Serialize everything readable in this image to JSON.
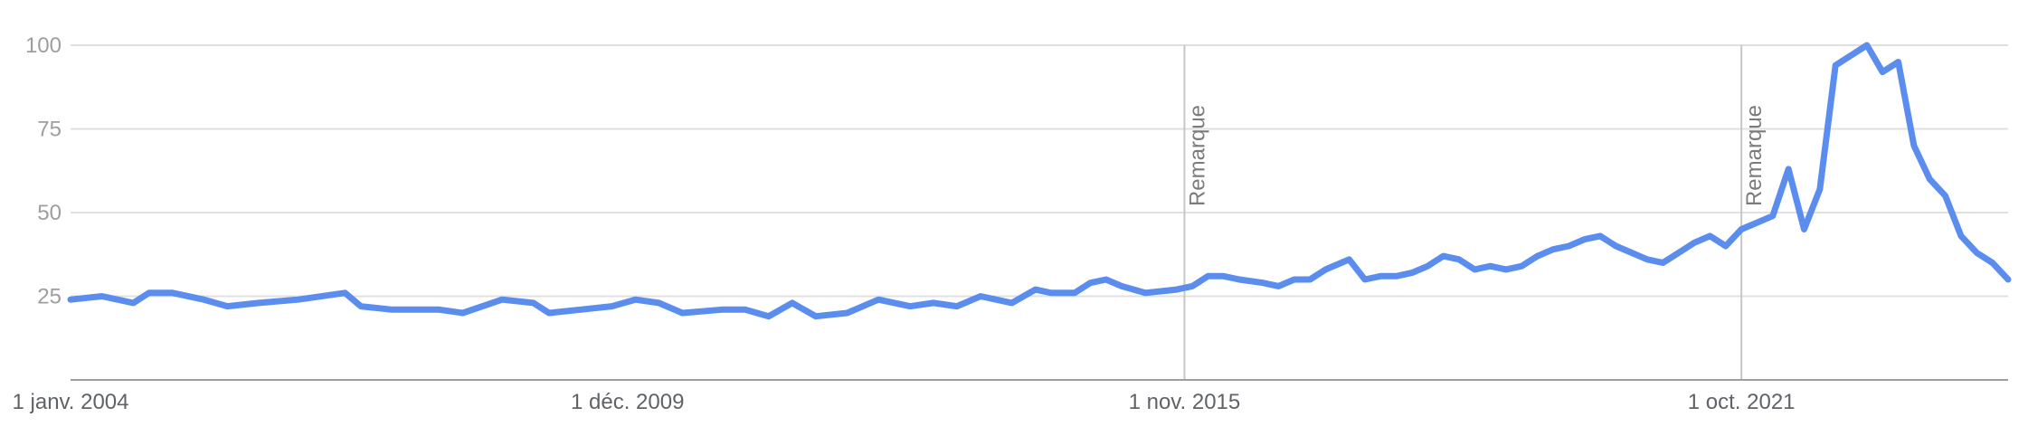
{
  "chart_data": {
    "type": "line",
    "title": "",
    "xlabel": "",
    "ylabel": "",
    "xlim": [
      "2004-01",
      "2024-08"
    ],
    "ylim": [
      0,
      100
    ],
    "y_ticks": [
      "25",
      "50",
      "75",
      "100"
    ],
    "x_tick_labels": [
      {
        "date": "2004-01",
        "label": "1 janv. 2004"
      },
      {
        "date": "2009-12",
        "label": "1 déc. 2009"
      },
      {
        "date": "2015-11",
        "label": "1 nov. 2015"
      },
      {
        "date": "2021-10",
        "label": "1 oct. 2021"
      }
    ],
    "annotations": [
      {
        "date": "2015-11",
        "label": "Remarque"
      },
      {
        "date": "2021-10",
        "label": "Remarque"
      }
    ],
    "grid": true,
    "series_color": "#5b8def",
    "series": [
      {
        "points": [
          [
            "2004-01",
            24
          ],
          [
            "2004-05",
            25
          ],
          [
            "2004-09",
            23
          ],
          [
            "2004-11",
            26
          ],
          [
            "2005-02",
            26
          ],
          [
            "2005-06",
            24
          ],
          [
            "2005-09",
            22
          ],
          [
            "2006-01",
            23
          ],
          [
            "2006-06",
            24
          ],
          [
            "2006-12",
            26
          ],
          [
            "2007-02",
            22
          ],
          [
            "2007-06",
            21
          ],
          [
            "2007-12",
            21
          ],
          [
            "2008-03",
            20
          ],
          [
            "2008-08",
            24
          ],
          [
            "2008-12",
            23
          ],
          [
            "2009-02",
            20
          ],
          [
            "2009-06",
            21
          ],
          [
            "2009-10",
            22
          ],
          [
            "2010-01",
            24
          ],
          [
            "2010-04",
            23
          ],
          [
            "2010-07",
            20
          ],
          [
            "2010-12",
            21
          ],
          [
            "2011-03",
            21
          ],
          [
            "2011-06",
            19
          ],
          [
            "2011-09",
            23
          ],
          [
            "2011-12",
            19
          ],
          [
            "2012-04",
            20
          ],
          [
            "2012-08",
            24
          ],
          [
            "2012-12",
            22
          ],
          [
            "2013-03",
            23
          ],
          [
            "2013-06",
            22
          ],
          [
            "2013-09",
            25
          ],
          [
            "2014-01",
            23
          ],
          [
            "2014-04",
            27
          ],
          [
            "2014-06",
            26
          ],
          [
            "2014-09",
            26
          ],
          [
            "2014-11",
            29
          ],
          [
            "2015-01",
            30
          ],
          [
            "2015-03",
            28
          ],
          [
            "2015-06",
            26
          ],
          [
            "2015-10",
            27
          ],
          [
            "2015-12",
            28
          ],
          [
            "2016-02",
            31
          ],
          [
            "2016-04",
            31
          ],
          [
            "2016-06",
            30
          ],
          [
            "2016-09",
            29
          ],
          [
            "2016-11",
            28
          ],
          [
            "2017-01",
            30
          ],
          [
            "2017-03",
            30
          ],
          [
            "2017-05",
            33
          ],
          [
            "2017-07",
            35
          ],
          [
            "2017-08",
            36
          ],
          [
            "2017-10",
            30
          ],
          [
            "2017-12",
            31
          ],
          [
            "2018-02",
            31
          ],
          [
            "2018-04",
            32
          ],
          [
            "2018-06",
            34
          ],
          [
            "2018-08",
            37
          ],
          [
            "2018-10",
            36
          ],
          [
            "2018-12",
            33
          ],
          [
            "2019-02",
            34
          ],
          [
            "2019-04",
            33
          ],
          [
            "2019-06",
            34
          ],
          [
            "2019-08",
            37
          ],
          [
            "2019-10",
            39
          ],
          [
            "2019-12",
            40
          ],
          [
            "2020-02",
            42
          ],
          [
            "2020-04",
            43
          ],
          [
            "2020-06",
            40
          ],
          [
            "2020-08",
            38
          ],
          [
            "2020-10",
            36
          ],
          [
            "2020-12",
            35
          ],
          [
            "2021-02",
            38
          ],
          [
            "2021-04",
            41
          ],
          [
            "2021-06",
            43
          ],
          [
            "2021-08",
            40
          ],
          [
            "2021-10",
            45
          ],
          [
            "2021-12",
            47
          ],
          [
            "2022-02",
            49
          ],
          [
            "2022-04",
            63
          ],
          [
            "2022-06",
            45
          ],
          [
            "2022-08",
            57
          ],
          [
            "2022-10",
            94
          ],
          [
            "2022-12",
            97
          ],
          [
            "2023-02",
            100
          ],
          [
            "2023-04",
            92
          ],
          [
            "2023-06",
            95
          ],
          [
            "2023-08",
            70
          ],
          [
            "2023-10",
            60
          ],
          [
            "2023-12",
            55
          ],
          [
            "2024-02",
            43
          ],
          [
            "2024-04",
            38
          ],
          [
            "2024-06",
            35
          ],
          [
            "2024-08",
            30
          ]
        ]
      }
    ]
  }
}
